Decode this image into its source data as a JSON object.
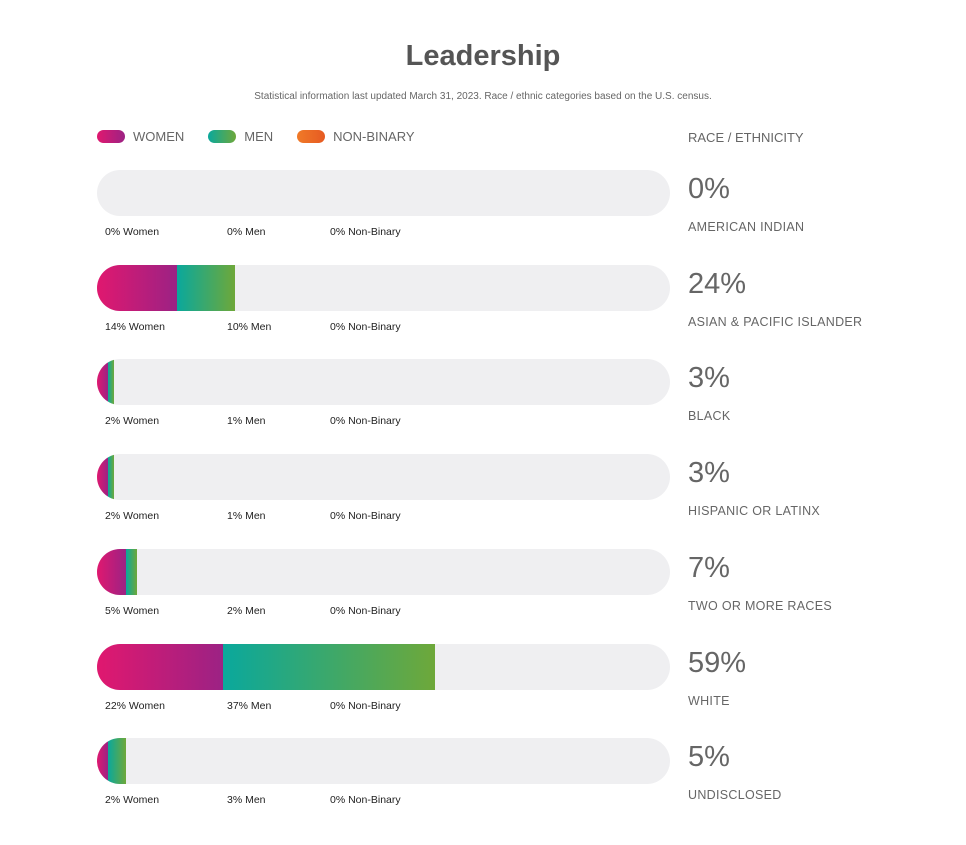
{
  "title": "Leadership",
  "subtitle": "Statistical information last updated March 31, 2023. Race / ethnic categories based on the U.S. census.",
  "legend": [
    {
      "label": "WOMEN",
      "color": "#c01a7a"
    },
    {
      "label": "MEN",
      "color": "#2fa67a"
    },
    {
      "label": "NON-BINARY",
      "color": "#ec6a25"
    }
  ],
  "race_header": "RACE / ETHNICITY",
  "chart_data": {
    "type": "bar",
    "orientation": "horizontal-stacked",
    "series_names": [
      "Women",
      "Men",
      "Non-Binary"
    ],
    "rows": [
      {
        "category": "AMERICAN INDIAN",
        "total": "0%",
        "women": 0,
        "men": 0,
        "nonbinary": 0,
        "women_label": "0% Women",
        "men_label": "0% Men",
        "nb_label": "0% Non-Binary"
      },
      {
        "category": "ASIAN & PACIFIC ISLANDER",
        "total": "24%",
        "women": 14,
        "men": 10,
        "nonbinary": 0,
        "women_label": "14% Women",
        "men_label": "10% Men",
        "nb_label": "0% Non-Binary"
      },
      {
        "category": "BLACK",
        "total": "3%",
        "women": 2,
        "men": 1,
        "nonbinary": 0,
        "women_label": "2% Women",
        "men_label": "1% Men",
        "nb_label": "0% Non-Binary"
      },
      {
        "category": "HISPANIC OR LATINX",
        "total": "3%",
        "women": 2,
        "men": 1,
        "nonbinary": 0,
        "women_label": "2% Women",
        "men_label": "1% Men",
        "nb_label": "0% Non-Binary"
      },
      {
        "category": "TWO OR MORE RACES",
        "total": "7%",
        "women": 5,
        "men": 2,
        "nonbinary": 0,
        "women_label": "5% Women",
        "men_label": "2% Men",
        "nb_label": "0% Non-Binary"
      },
      {
        "category": "WHITE",
        "total": "59%",
        "women": 22,
        "men": 37,
        "nonbinary": 0,
        "women_label": "22% Women",
        "men_label": "37% Men",
        "nb_label": "0% Non-Binary"
      },
      {
        "category": "UNDISCLOSED",
        "total": "5%",
        "women": 2,
        "men": 3,
        "nonbinary": 0,
        "women_label": "2% Women",
        "men_label": "3% Men",
        "nb_label": "0% Non-Binary"
      }
    ],
    "xlim": [
      0,
      100
    ]
  }
}
